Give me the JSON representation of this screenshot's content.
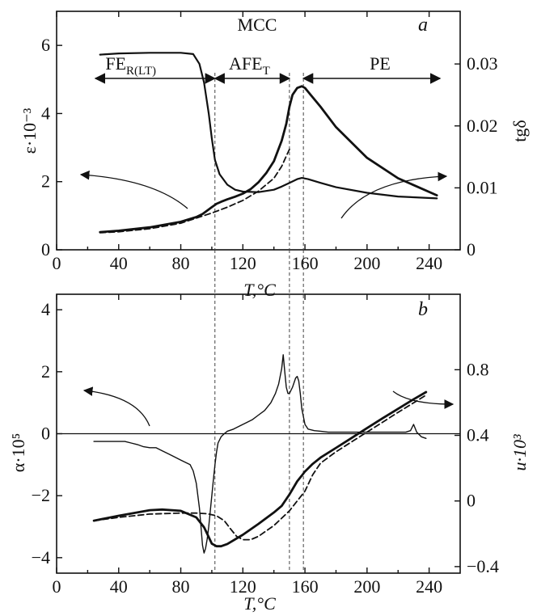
{
  "chart_data": [
    {
      "id": "a",
      "type": "line",
      "panel_letter": "a",
      "title": "MCC",
      "xlabel": "T,°C",
      "xlim": [
        0,
        260
      ],
      "xticks": [
        0,
        40,
        80,
        120,
        160,
        200,
        240
      ],
      "ylabel_left": "ε·10⁻³",
      "ylim_left": [
        0,
        7
      ],
      "yticks_left": [
        0,
        2,
        4,
        6
      ],
      "ylabel_right": "tgδ",
      "ylim_right": [
        0,
        0.0385
      ],
      "yticks_right": [
        0,
        0.01,
        0.02,
        0.03
      ],
      "yticks_right_labels": [
        "0",
        "0.01",
        "0.02",
        "0.03"
      ],
      "phase_regions": [
        {
          "label": "FE",
          "subscript": "R(LT)",
          "x_start": 25,
          "x_end": 102
        },
        {
          "label": "AFE",
          "subscript": "T",
          "x_start": 102,
          "x_end": 150
        },
        {
          "label": "PE",
          "subscript": "",
          "x_start": 159,
          "x_end": 247
        }
      ],
      "transition_lines": [
        102,
        150,
        159
      ],
      "series": [
        {
          "axis": "left",
          "style": "solid",
          "width": 2.8,
          "x": [
            28,
            40,
            60,
            80,
            90,
            94,
            97,
            100,
            103,
            106,
            110,
            115,
            120,
            125,
            130,
            135,
            140,
            145,
            148,
            150,
            152,
            155,
            158,
            160,
            170,
            180,
            200,
            220,
            245
          ],
          "y": [
            0.52,
            0.56,
            0.66,
            0.82,
            0.96,
            1.05,
            1.15,
            1.25,
            1.35,
            1.41,
            1.48,
            1.56,
            1.65,
            1.78,
            1.98,
            2.25,
            2.6,
            3.2,
            3.7,
            4.2,
            4.55,
            4.75,
            4.8,
            4.75,
            4.2,
            3.6,
            2.7,
            2.1,
            1.6
          ]
        },
        {
          "axis": "left",
          "style": "dashed",
          "width": 1.8,
          "x": [
            28,
            40,
            60,
            80,
            100,
            110,
            120,
            130,
            140,
            145,
            148,
            150
          ],
          "y": [
            0.5,
            0.53,
            0.62,
            0.78,
            1.08,
            1.25,
            1.45,
            1.72,
            2.1,
            2.45,
            2.75,
            2.95
          ]
        },
        {
          "axis": "right",
          "style": "solid",
          "width": 2.2,
          "x": [
            28,
            40,
            60,
            80,
            88,
            92,
            95,
            98,
            100,
            102,
            105,
            110,
            115,
            120,
            130,
            140,
            145,
            150,
            155,
            158,
            162,
            170,
            180,
            200,
            220,
            245
          ],
          "y": [
            0.0315,
            0.0317,
            0.0318,
            0.0318,
            0.0316,
            0.03,
            0.027,
            0.022,
            0.018,
            0.0145,
            0.0122,
            0.0105,
            0.0097,
            0.0094,
            0.0093,
            0.0097,
            0.0102,
            0.0108,
            0.0114,
            0.0116,
            0.0114,
            0.0108,
            0.0101,
            0.0092,
            0.0086,
            0.0083
          ]
        }
      ],
      "annotations": [
        {
          "type": "arrow",
          "direction": "left",
          "meaning": "refers to left axis",
          "x_data": 85
        },
        {
          "type": "arrow",
          "direction": "right",
          "meaning": "refers to right axis",
          "x_data": 180
        }
      ]
    },
    {
      "id": "b",
      "type": "line",
      "panel_letter": "b",
      "xlabel": "T,°C",
      "xlim": [
        0,
        260
      ],
      "xticks": [
        0,
        40,
        80,
        120,
        160,
        200,
        240
      ],
      "ylabel_left": "α·10⁵",
      "ylim_left": [
        -4.5,
        4.5
      ],
      "yticks_left": [
        -4,
        -2,
        0,
        2,
        4
      ],
      "yticks_left_labels": [
        "−4",
        "−2",
        "0",
        "2",
        "4"
      ],
      "ylabel_right": "u·10³",
      "ylim_right": [
        -0.44,
        1.26
      ],
      "yticks_right": [
        -0.4,
        0,
        0.4,
        0.8
      ],
      "yticks_right_labels": [
        "−0.4",
        "0",
        "0.4",
        "0.8"
      ],
      "series": [
        {
          "axis": "left",
          "style": "solid",
          "width": 1.4,
          "x": [
            24,
            33,
            44,
            48,
            52,
            56,
            60,
            64,
            68,
            72,
            76,
            80,
            84,
            86,
            88,
            90,
            92,
            93,
            94,
            95,
            96,
            97,
            98,
            99,
            100,
            101,
            102,
            103,
            104,
            106,
            108,
            110,
            114,
            118,
            122,
            126,
            130,
            134,
            138,
            141,
            143,
            145,
            146,
            147,
            148,
            149,
            150,
            152,
            154,
            155,
            156,
            157,
            158,
            160,
            162,
            166,
            170,
            175,
            180,
            185,
            190,
            195,
            200,
            205,
            210,
            215,
            220,
            225,
            228,
            230,
            232,
            235,
            238
          ],
          "y": [
            -0.25,
            -0.25,
            -0.25,
            -0.3,
            -0.35,
            -0.42,
            -0.45,
            -0.45,
            -0.55,
            -0.65,
            -0.75,
            -0.85,
            -0.95,
            -1.0,
            -1.2,
            -1.6,
            -2.4,
            -3.0,
            -3.6,
            -3.85,
            -3.7,
            -3.4,
            -3.0,
            -2.5,
            -2.0,
            -1.5,
            -1.0,
            -0.6,
            -0.3,
            -0.1,
            0.0,
            0.08,
            0.15,
            0.25,
            0.35,
            0.45,
            0.6,
            0.75,
            1.0,
            1.3,
            1.6,
            2.1,
            2.55,
            2.0,
            1.5,
            1.3,
            1.3,
            1.5,
            1.8,
            1.85,
            1.7,
            1.3,
            0.8,
            0.3,
            0.15,
            0.1,
            0.08,
            0.05,
            0.05,
            0.05,
            0.05,
            0.05,
            0.05,
            0.05,
            0.05,
            0.05,
            0.05,
            0.05,
            0.1,
            0.3,
            0.05,
            -0.1,
            -0.15
          ]
        },
        {
          "axis": "right",
          "style": "solid",
          "width": 2.8,
          "x": [
            24,
            40,
            60,
            68,
            80,
            90,
            95,
            98,
            100,
            103,
            106,
            110,
            120,
            130,
            140,
            145,
            150,
            155,
            158,
            160,
            165,
            170,
            180,
            190,
            200,
            210,
            220,
            230,
            238
          ],
          "y": [
            -0.12,
            -0.09,
            -0.056,
            -0.052,
            -0.06,
            -0.1,
            -0.16,
            -0.22,
            -0.26,
            -0.276,
            -0.276,
            -0.262,
            -0.206,
            -0.14,
            -0.07,
            -0.03,
            0.04,
            0.12,
            0.155,
            0.18,
            0.226,
            0.264,
            0.324,
            0.384,
            0.444,
            0.504,
            0.562,
            0.62,
            0.664
          ]
        },
        {
          "axis": "right",
          "style": "dashed",
          "width": 1.8,
          "x": [
            24,
            40,
            60,
            80,
            90,
            97,
            103,
            108,
            112,
            116,
            120,
            125,
            130,
            140,
            150,
            160,
            165,
            170,
            180,
            200,
            220,
            238
          ],
          "y": [
            -0.12,
            -0.1,
            -0.08,
            -0.074,
            -0.074,
            -0.078,
            -0.09,
            -0.12,
            -0.17,
            -0.216,
            -0.236,
            -0.236,
            -0.216,
            -0.15,
            -0.06,
            0.06,
            0.16,
            0.23,
            0.3,
            0.42,
            0.54,
            0.645
          ]
        }
      ],
      "annotations": [
        {
          "type": "arrow",
          "direction": "left",
          "meaning": "refers to left axis",
          "x_data": 60
        },
        {
          "type": "arrow",
          "direction": "right",
          "meaning": "refers to right axis",
          "x_data": 215
        }
      ]
    }
  ]
}
